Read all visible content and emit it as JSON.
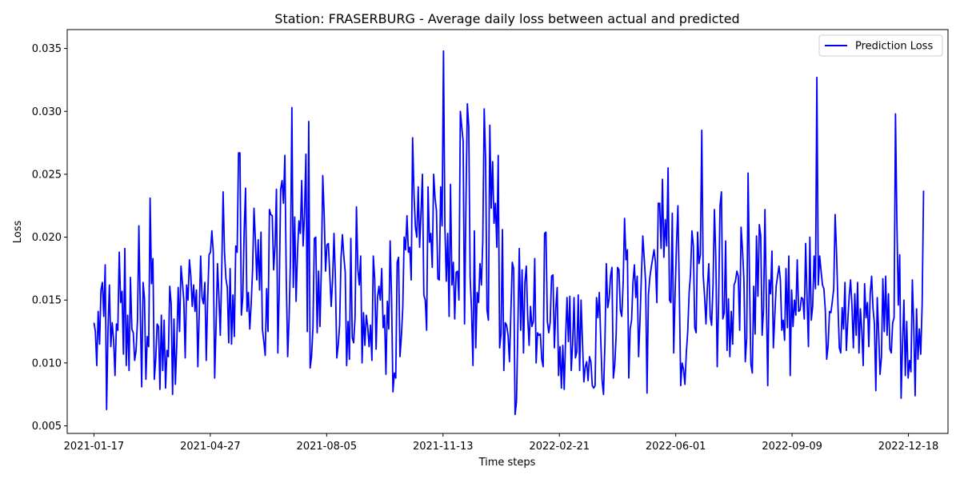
{
  "chart_data": {
    "type": "line",
    "title": "Station: FRASERBURG - Average daily loss between actual and predicted",
    "xlabel": "Time steps",
    "ylabel": "Loss",
    "x_start": "2021-01-17",
    "x_end": "2022-12-31",
    "xlim": [
      "2020-12-25",
      "2023-01-21"
    ],
    "ylim": [
      0.0044,
      0.0365
    ],
    "x_ticks": [
      "2021-01-17",
      "2021-04-27",
      "2021-08-05",
      "2021-11-13",
      "2022-02-21",
      "2022-06-01",
      "2022-09-09",
      "2022-12-18"
    ],
    "y_ticks": [
      "0.005",
      "0.010",
      "0.015",
      "0.020",
      "0.025",
      "0.030",
      "0.035"
    ],
    "grid": false,
    "legend_position": "top-right",
    "series": [
      {
        "name": "Prediction Loss",
        "color": "#0000ff",
        "values": [
          0.0132,
          0.0125,
          0.0098,
          0.0141,
          0.0115,
          0.0158,
          0.0164,
          0.0137,
          0.0178,
          0.0063,
          0.0126,
          0.0162,
          0.0113,
          0.0132,
          0.0118,
          0.009,
          0.0131,
          0.0126,
          0.0188,
          0.0148,
          0.0157,
          0.0107,
          0.0191,
          0.0098,
          0.0138,
          0.0094,
          0.0168,
          0.0127,
          0.0124,
          0.0102,
          0.011,
          0.0134,
          0.0209,
          0.0142,
          0.0081,
          0.0164,
          0.0151,
          0.0087,
          0.0121,
          0.0113,
          0.0231,
          0.0163,
          0.0183,
          0.0087,
          0.0103,
          0.0131,
          0.0129,
          0.0079,
          0.0138,
          0.0094,
          0.0134,
          0.008,
          0.011,
          0.0105,
          0.0161,
          0.0147,
          0.0075,
          0.0135,
          0.0083,
          0.0115,
          0.016,
          0.0125,
          0.0177,
          0.0164,
          0.015,
          0.0104,
          0.0162,
          0.015,
          0.0182,
          0.0169,
          0.0145,
          0.0162,
          0.0141,
          0.0158,
          0.0097,
          0.014,
          0.0185,
          0.0152,
          0.0147,
          0.0164,
          0.0102,
          0.0151,
          0.0186,
          0.0188,
          0.0205,
          0.0188,
          0.0088,
          0.013,
          0.0179,
          0.0153,
          0.0122,
          0.0172,
          0.0236,
          0.0188,
          0.0167,
          0.016,
          0.0116,
          0.0175,
          0.0115,
          0.0154,
          0.0121,
          0.0193,
          0.0188,
          0.0267,
          0.0267,
          0.0138,
          0.0152,
          0.0205,
          0.0239,
          0.0141,
          0.0156,
          0.0127,
          0.0147,
          0.0174,
          0.0223,
          0.0198,
          0.0166,
          0.0198,
          0.0158,
          0.0204,
          0.0127,
          0.0117,
          0.0106,
          0.0159,
          0.0125,
          0.0222,
          0.0218,
          0.0217,
          0.0174,
          0.0193,
          0.0238,
          0.0108,
          0.0158,
          0.0238,
          0.0245,
          0.0227,
          0.0265,
          0.0167,
          0.0105,
          0.0135,
          0.0183,
          0.0303,
          0.016,
          0.0216,
          0.0149,
          0.0188,
          0.0213,
          0.0203,
          0.0245,
          0.0193,
          0.0219,
          0.0266,
          0.0125,
          0.0292,
          0.0096,
          0.0105,
          0.0128,
          0.0199,
          0.02,
          0.0124,
          0.0173,
          0.0129,
          0.0176,
          0.0249,
          0.0218,
          0.0173,
          0.0194,
          0.0195,
          0.017,
          0.0145,
          0.0166,
          0.0203,
          0.0167,
          0.0104,
          0.0114,
          0.013,
          0.0183,
          0.0202,
          0.0185,
          0.0172,
          0.0098,
          0.0133,
          0.0103,
          0.0199,
          0.012,
          0.0116,
          0.0136,
          0.0224,
          0.0175,
          0.0162,
          0.0185,
          0.01,
          0.014,
          0.0114,
          0.0138,
          0.0129,
          0.0113,
          0.013,
          0.0102,
          0.0185,
          0.0167,
          0.0111,
          0.0152,
          0.0161,
          0.015,
          0.0175,
          0.0128,
          0.0138,
          0.0091,
          0.0149,
          0.0127,
          0.0197,
          0.0153,
          0.0077,
          0.0092,
          0.0088,
          0.018,
          0.0184,
          0.0105,
          0.0121,
          0.0144,
          0.02,
          0.019,
          0.0217,
          0.0188,
          0.0192,
          0.0166,
          0.0279,
          0.0234,
          0.0208,
          0.02,
          0.024,
          0.0192,
          0.022,
          0.025,
          0.0154,
          0.015,
          0.0126,
          0.024,
          0.0196,
          0.0203,
          0.0176,
          0.025,
          0.0231,
          0.0221,
          0.0167,
          0.0166,
          0.024,
          0.0209,
          0.0348,
          0.0208,
          0.0165,
          0.0203,
          0.0137,
          0.0242,
          0.0162,
          0.018,
          0.0135,
          0.0172,
          0.0173,
          0.015,
          0.03,
          0.0288,
          0.0276,
          0.0131,
          0.0227,
          0.0306,
          0.0288,
          0.0168,
          0.0141,
          0.0098,
          0.0205,
          0.0112,
          0.0156,
          0.0148,
          0.0179,
          0.0162,
          0.0197,
          0.0302,
          0.0262,
          0.0142,
          0.0134,
          0.0289,
          0.0223,
          0.026,
          0.0211,
          0.0227,
          0.0192,
          0.0265,
          0.0112,
          0.0123,
          0.0206,
          0.0094,
          0.0132,
          0.013,
          0.0122,
          0.0101,
          0.014,
          0.018,
          0.0175,
          0.0059,
          0.0069,
          0.013,
          0.0191,
          0.0126,
          0.0174,
          0.0108,
          0.0164,
          0.0177,
          0.0136,
          0.0114,
          0.0145,
          0.0129,
          0.0133,
          0.0183,
          0.01,
          0.0124,
          0.0122,
          0.0123,
          0.0103,
          0.0097,
          0.0203,
          0.0204,
          0.0133,
          0.0124,
          0.0132,
          0.0169,
          0.017,
          0.0112,
          0.0143,
          0.016,
          0.009,
          0.0113,
          0.008,
          0.0114,
          0.0079,
          0.012,
          0.0152,
          0.0117,
          0.0153,
          0.0094,
          0.0115,
          0.0152,
          0.0104,
          0.0109,
          0.0154,
          0.0094,
          0.015,
          0.0117,
          0.0085,
          0.0097,
          0.0101,
          0.0086,
          0.0105,
          0.0101,
          0.0082,
          0.008,
          0.0082,
          0.0152,
          0.0136,
          0.0156,
          0.012,
          0.0086,
          0.0075,
          0.0116,
          0.0179,
          0.0144,
          0.0151,
          0.0169,
          0.0176,
          0.0088,
          0.0098,
          0.0122,
          0.0176,
          0.0174,
          0.0142,
          0.0137,
          0.0164,
          0.0215,
          0.0182,
          0.019,
          0.0088,
          0.0127,
          0.0134,
          0.0164,
          0.0178,
          0.0152,
          0.0169,
          0.0105,
          0.0134,
          0.017,
          0.0201,
          0.0183,
          0.0164,
          0.0076,
          0.0154,
          0.0168,
          0.0176,
          0.0183,
          0.019,
          0.018,
          0.0148,
          0.0227,
          0.0227,
          0.0191,
          0.0246,
          0.0184,
          0.0214,
          0.0193,
          0.0255,
          0.015,
          0.0148,
          0.0219,
          0.0108,
          0.0155,
          0.0195,
          0.0225,
          0.0157,
          0.0082,
          0.01,
          0.0095,
          0.0083,
          0.0108,
          0.0125,
          0.0156,
          0.0171,
          0.0205,
          0.0193,
          0.0128,
          0.0124,
          0.0204,
          0.0179,
          0.0186,
          0.0285,
          0.017,
          0.0153,
          0.0131,
          0.016,
          0.0179,
          0.0137,
          0.013,
          0.0161,
          0.0222,
          0.0184,
          0.0097,
          0.0149,
          0.0225,
          0.0236,
          0.0135,
          0.014,
          0.0197,
          0.011,
          0.0151,
          0.0105,
          0.0141,
          0.0115,
          0.0162,
          0.0165,
          0.0173,
          0.0169,
          0.0126,
          0.0208,
          0.019,
          0.0167,
          0.0101,
          0.012,
          0.0251,
          0.0166,
          0.0099,
          0.0092,
          0.0161,
          0.0123,
          0.0201,
          0.0153,
          0.021,
          0.0201,
          0.0122,
          0.0143,
          0.0222,
          0.0152,
          0.0082,
          0.0166,
          0.0155,
          0.0189,
          0.0112,
          0.0137,
          0.0161,
          0.0169,
          0.0177,
          0.0166,
          0.0126,
          0.0134,
          0.0118,
          0.0175,
          0.0128,
          0.0185,
          0.009,
          0.0158,
          0.0129,
          0.015,
          0.0138,
          0.0182,
          0.0141,
          0.0142,
          0.0152,
          0.0151,
          0.0135,
          0.0195,
          0.0151,
          0.0113,
          0.02,
          0.0134,
          0.0145,
          0.0185,
          0.0159,
          0.0327,
          0.0162,
          0.0185,
          0.0173,
          0.0162,
          0.0159,
          0.0142,
          0.0103,
          0.0114,
          0.0141,
          0.014,
          0.0149,
          0.0159,
          0.0218,
          0.0188,
          0.0147,
          0.0112,
          0.0108,
          0.0144,
          0.0127,
          0.0164,
          0.011,
          0.0133,
          0.0153,
          0.0166,
          0.0145,
          0.0112,
          0.0155,
          0.0122,
          0.0164,
          0.0108,
          0.0143,
          0.0126,
          0.0098,
          0.0163,
          0.0136,
          0.0148,
          0.0113,
          0.0155,
          0.0169,
          0.0143,
          0.0131,
          0.0078,
          0.0152,
          0.0124,
          0.0091,
          0.0105,
          0.0167,
          0.0125,
          0.0169,
          0.0122,
          0.0155,
          0.0111,
          0.0108,
          0.0132,
          0.0136,
          0.0298,
          0.0212,
          0.0146,
          0.0186,
          0.0072,
          0.0114,
          0.015,
          0.009,
          0.0133,
          0.0088,
          0.0102,
          0.0093,
          0.0166,
          0.013,
          0.0074,
          0.0143,
          0.0103,
          0.0127,
          0.0107,
          0.0147,
          0.0237
        ]
      }
    ]
  }
}
